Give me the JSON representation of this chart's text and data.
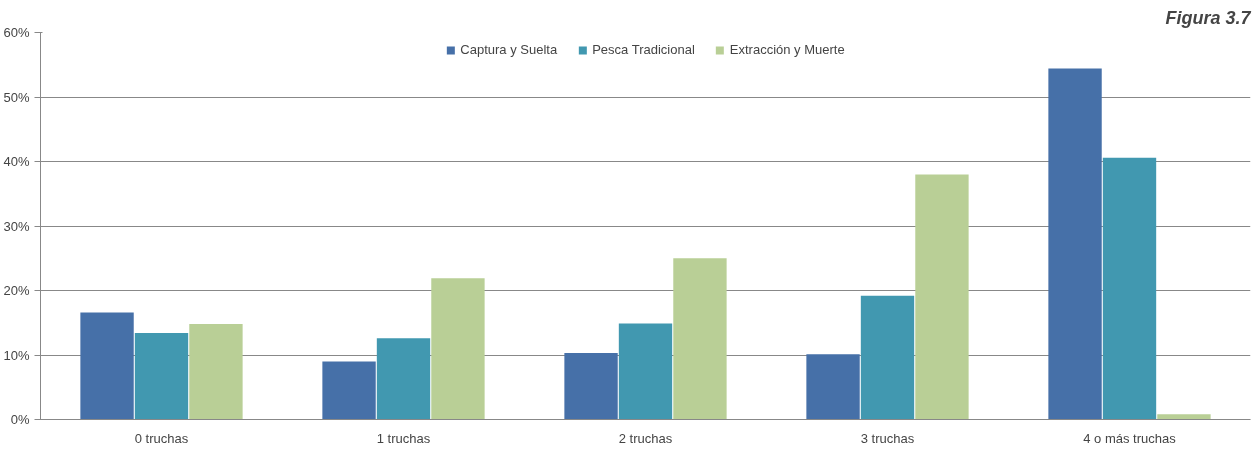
{
  "chart_data": {
    "type": "bar",
    "title": "Figura 3.7",
    "categories": [
      "0 truchas",
      "1 truchas",
      "2 truchas",
      "3 truchas",
      "4 o más truchas"
    ],
    "series": [
      {
        "name": "Captura y Suelta",
        "color": "#4670a8",
        "values": [
          16.6,
          9.0,
          10.3,
          10.1,
          54.4
        ]
      },
      {
        "name": "Pesca Tradicional",
        "color": "#4198b0",
        "values": [
          13.4,
          12.6,
          14.9,
          19.2,
          40.6
        ]
      },
      {
        "name": "Extracción y Muerte",
        "color": "#b9cf96",
        "values": [
          14.8,
          21.9,
          25.0,
          38.0,
          0.8
        ]
      }
    ],
    "ylim": [
      0,
      60
    ],
    "yticks": [
      {
        "value": 0,
        "label": "0%"
      },
      {
        "value": 10,
        "label": "10%"
      },
      {
        "value": 20,
        "label": "20%"
      },
      {
        "value": 30,
        "label": "30%"
      },
      {
        "value": 40,
        "label": "40%"
      },
      {
        "value": 50,
        "label": "50%"
      },
      {
        "value": 60,
        "label": "60%"
      }
    ],
    "grid": "y",
    "legend": "top"
  }
}
